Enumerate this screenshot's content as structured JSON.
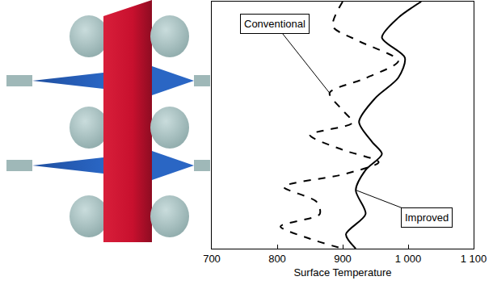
{
  "chart_data": {
    "type": "line",
    "xlabel": "Surface Temperature",
    "xlim": [
      700,
      1100
    ],
    "xticks": [
      700,
      800,
      900,
      {
        "value": 1000,
        "label": "1 000"
      },
      {
        "value": 1100,
        "label": "1 100"
      }
    ],
    "ylim": [
      0,
      100
    ],
    "tick_labels": "x",
    "grid": false,
    "series": [
      {
        "name": "Conventional",
        "color": "#000000",
        "line_style": "dashed",
        "x": [
          900,
          885,
          925,
          985,
          935,
          880,
          900,
          915,
          850,
          900,
          955,
          900,
          810,
          860,
          865,
          805,
          850,
          900
        ],
        "y": [
          100,
          90,
          84,
          76,
          69,
          63,
          56,
          51,
          46,
          40,
          35,
          30,
          25,
          19,
          14,
          9,
          4,
          0
        ]
      },
      {
        "name": "Improved",
        "color": "#000000",
        "line_style": "solid",
        "x": [
          1020,
          985,
          960,
          995,
          985,
          950,
          925,
          945,
          960,
          935,
          920,
          935,
          905,
          920
        ],
        "y": [
          100,
          93.5,
          85.4,
          77.3,
          69.2,
          61,
          51.3,
          43.2,
          38.3,
          31.8,
          23.7,
          14,
          5.8,
          0
        ]
      }
    ],
    "annotations": [
      {
        "text": "Conventional",
        "x": 880,
        "y": 63
      },
      {
        "text": "Improved",
        "x": 920,
        "y": 23.7
      }
    ]
  }
}
